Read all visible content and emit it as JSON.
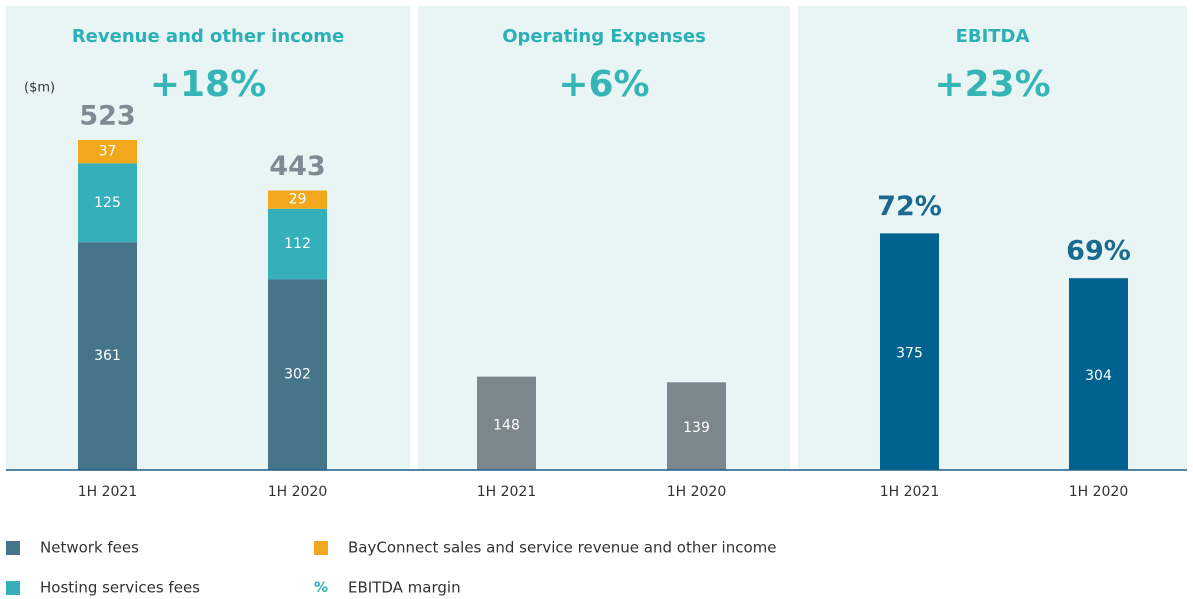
{
  "chart_data": [
    {
      "type": "stacked_bar",
      "title": "Revenue and other income",
      "unit": "($m)",
      "change": "+18%",
      "categories": [
        "1H 2021",
        "1H 2020"
      ],
      "series": [
        {
          "name": "Network fees",
          "color": "#46748a",
          "values": [
            361,
            302
          ]
        },
        {
          "name": "Hosting services fees",
          "color": "#35b0ba",
          "values": [
            125,
            112
          ]
        },
        {
          "name": "BayConnect sales and service revenue and other income",
          "color": "#f2a81d",
          "values": [
            37,
            29
          ]
        }
      ],
      "totals": [
        523,
        443
      ]
    },
    {
      "type": "bar",
      "title": "Operating Expenses",
      "change": "+6%",
      "categories": [
        "1H 2021",
        "1H 2020"
      ],
      "values": [
        148,
        139
      ],
      "color": "#7b868d"
    },
    {
      "type": "bar",
      "title": "EBITDA",
      "change": "+23%",
      "categories": [
        "1H 2021",
        "1H 2020"
      ],
      "values": [
        375,
        304
      ],
      "color": "#00628f",
      "margins": [
        72,
        69
      ],
      "margin_labels": [
        "72%",
        "69%"
      ],
      "margin_symbol": "%",
      "margin_name": "EBITDA margin"
    }
  ]
}
